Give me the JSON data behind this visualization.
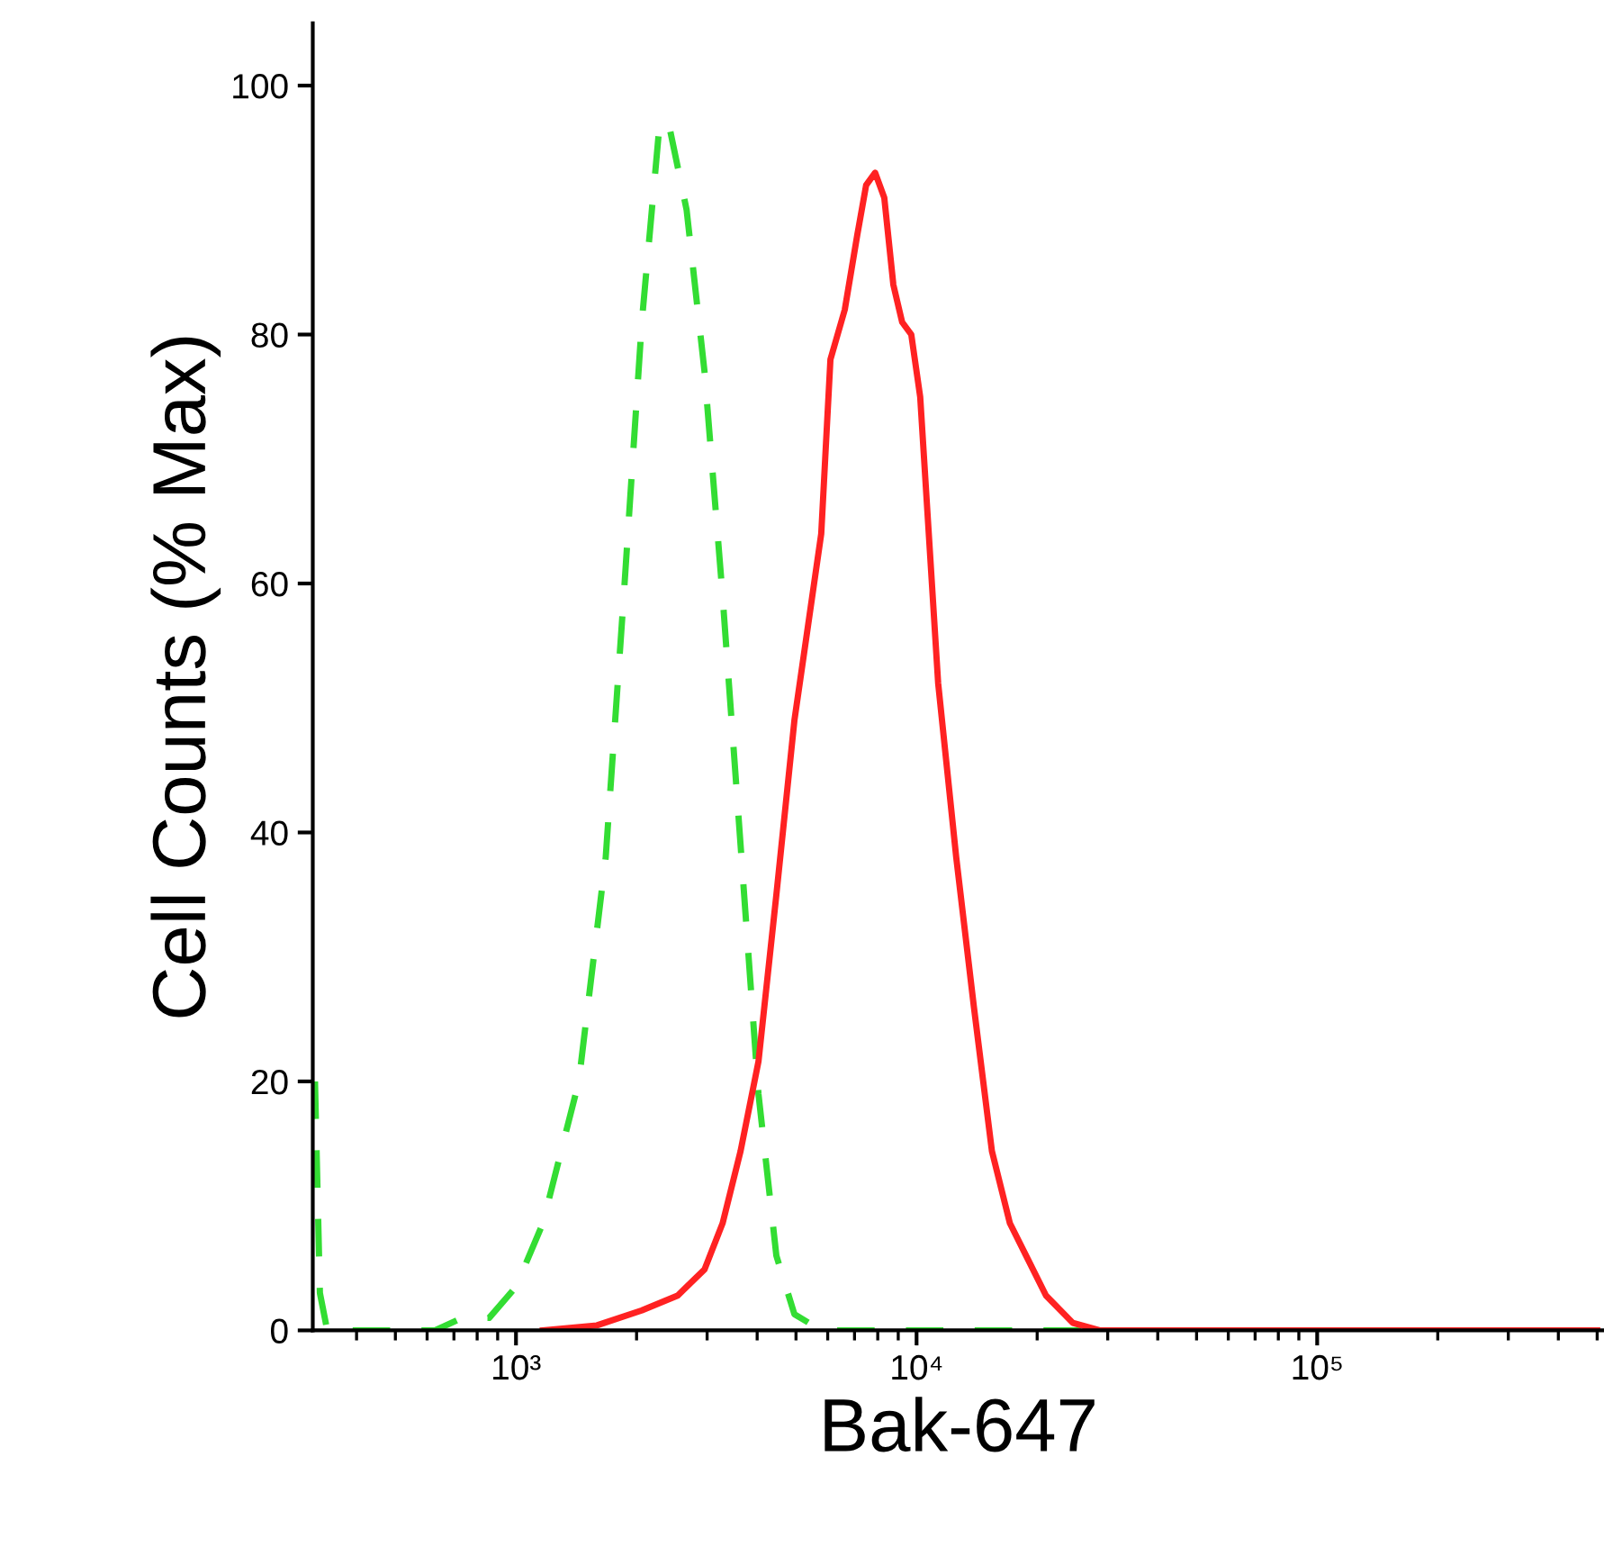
{
  "chart_data": {
    "type": "line",
    "xlabel": "Bak-647",
    "ylabel": "Cell Counts (% Max)",
    "log": "x",
    "xlim": [
      311,
      520000
    ],
    "ylim": [
      0,
      105
    ],
    "xticks": [
      {
        "value": 1000,
        "label": "10³"
      },
      {
        "value": 10000,
        "label": "10⁴"
      },
      {
        "value": 100000,
        "label": "10⁵"
      }
    ],
    "yticks": [
      0,
      20,
      40,
      60,
      80,
      100
    ],
    "grid": false,
    "legend": false,
    "marker": "none",
    "series": [
      {
        "color": "#33dd33",
        "line_style": "dashed",
        "x": [
          315,
          324,
          338,
          628,
          733,
          857,
          1000,
          1167,
          1435,
          1675,
          1858,
          2061,
          2284,
          2404,
          2667,
          2956,
          3279,
          3636,
          4030,
          4467,
          4955,
          5781,
          500000
        ],
        "values": [
          20,
          3,
          0,
          0,
          1,
          1,
          3.5,
          8.6,
          20,
          38,
          59,
          81,
          97,
          97,
          90,
          77,
          59,
          39,
          19,
          6,
          1.3,
          0,
          0
        ]
      },
      {
        "color": "#ff2222",
        "line_style": "solid",
        "x": [
          1167,
          1592,
          2061,
          2534,
          2956,
          3279,
          3636,
          4030,
          4467,
          4955,
          5781,
          6095,
          6619,
          7112,
          7483,
          7880,
          8305,
          8750,
          9204,
          9700,
          10210,
          11320,
          12560,
          13900,
          15420,
          17100,
          18970,
          21040,
          24550,
          28640,
          500000
        ],
        "values": [
          0,
          0.4,
          1.6,
          2.8,
          4.9,
          8.6,
          14.4,
          21.6,
          35,
          49,
          64,
          78,
          82,
          88,
          92,
          93,
          91,
          84,
          81,
          80,
          75,
          52,
          38,
          26,
          14.4,
          8.6,
          5.7,
          2.8,
          0.6,
          0,
          0
        ]
      }
    ]
  }
}
